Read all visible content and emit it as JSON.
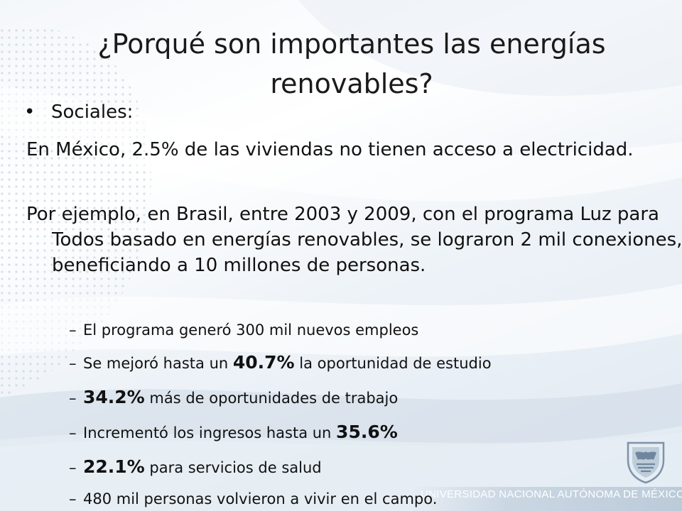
{
  "slide": {
    "title": "¿Porqué son importantes las energías renovables?",
    "bullet": {
      "label": "Sociales:"
    },
    "paragraphs": [
      "En México, 2.5% de las viviendas no tienen acceso a electricidad.",
      "Por ejemplo, en Brasil, entre 2003 y 2009, con el programa Luz para Todos basado en energías renovables, se lograron 2 mil conexiones, beneficiando a 10 millones de personas."
    ],
    "subitems": {
      "s1": {
        "text": "El programa generó 300 mil nuevos empleos"
      },
      "s2": {
        "before": "Se mejoró hasta un ",
        "value": "40.7%",
        "after": " la oportunidad de estudio"
      },
      "s3": {
        "value": "34.2%",
        "after": " más de oportunidades de  trabajo"
      },
      "s4": {
        "before": "Incrementó los ingresos hasta un ",
        "value": "35.6%"
      },
      "s5": {
        "value": "22.1%",
        "after": " para servicios de salud"
      },
      "s6": {
        "text": "480 mil personas volvieron a vivir en el campo."
      }
    },
    "bullet_glyph": "•",
    "dash_glyph": "–"
  },
  "footer": {
    "text": "UNIVERSIDAD NACIONAL AUTÓNOMA DE MÉXICO",
    "logo_icon": "unam-crest-icon"
  },
  "colors": {
    "background_accent": "#9fb6cc",
    "text": "#111111",
    "footer_text": "#ffffff",
    "crest": "#7d93a8"
  }
}
